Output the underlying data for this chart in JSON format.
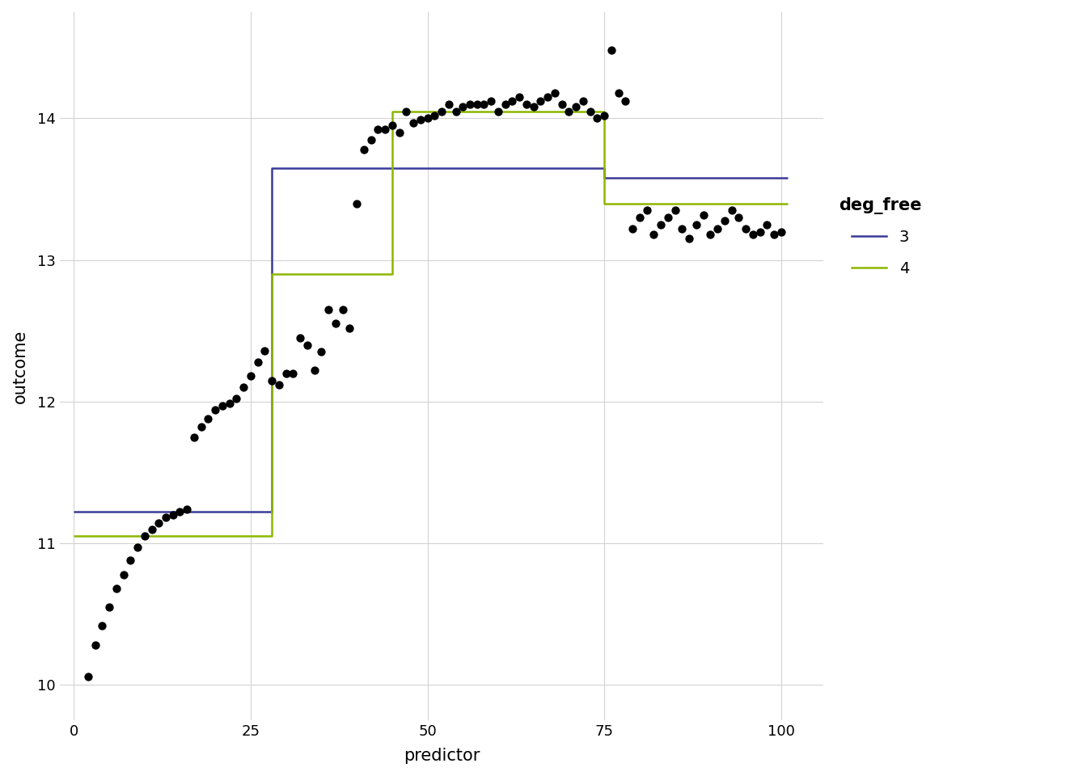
{
  "xlabel": "predictor",
  "ylabel": "outcome",
  "background_color": "#ffffff",
  "grid_color": "#d3d3d3",
  "scatter_color": "#000000",
  "xlim": [
    -2,
    106
  ],
  "ylim": [
    9.75,
    14.75
  ],
  "xticks": [
    0,
    25,
    50,
    75,
    100
  ],
  "yticks": [
    10,
    11,
    12,
    13,
    14
  ],
  "line_blue_color": "#3B3B98",
  "line_green_color": "#8DB600",
  "legend_title": "deg_free",
  "legend_labels": [
    "3",
    "4"
  ],
  "scatter_x": [
    2,
    3,
    4,
    5,
    6,
    7,
    8,
    9,
    10,
    11,
    12,
    13,
    14,
    15,
    16,
    17,
    18,
    19,
    20,
    21,
    22,
    23,
    24,
    25,
    26,
    27,
    28,
    29,
    30,
    31,
    32,
    33,
    34,
    35,
    36,
    37,
    38,
    39,
    40,
    41,
    42,
    43,
    44,
    45,
    46,
    47,
    48,
    49,
    50,
    51,
    52,
    53,
    54,
    55,
    56,
    57,
    58,
    59,
    60,
    61,
    62,
    63,
    64,
    65,
    66,
    67,
    68,
    69,
    70,
    71,
    72,
    73,
    74,
    75,
    76,
    77,
    78,
    79,
    80,
    81,
    82,
    83,
    84,
    85,
    86,
    87,
    88,
    89,
    90,
    91,
    92,
    93,
    94,
    95,
    96,
    97,
    98,
    99,
    100
  ],
  "scatter_y": [
    10.06,
    10.28,
    10.42,
    10.55,
    10.68,
    10.78,
    10.88,
    10.97,
    11.05,
    11.1,
    11.14,
    11.18,
    11.2,
    11.22,
    11.24,
    11.75,
    11.82,
    11.88,
    11.94,
    11.97,
    11.99,
    12.02,
    12.1,
    12.18,
    12.28,
    12.36,
    12.15,
    12.12,
    12.2,
    12.2,
    12.45,
    12.4,
    12.22,
    12.35,
    12.65,
    12.55,
    12.65,
    12.52,
    13.4,
    13.78,
    13.85,
    13.92,
    13.92,
    13.95,
    13.9,
    14.05,
    13.97,
    13.99,
    14.0,
    14.02,
    14.05,
    14.1,
    14.05,
    14.08,
    14.1,
    14.1,
    14.1,
    14.12,
    14.05,
    14.1,
    14.12,
    14.15,
    14.1,
    14.08,
    14.12,
    14.15,
    14.18,
    14.1,
    14.05,
    14.08,
    14.12,
    14.05,
    14.0,
    14.02,
    14.48,
    14.18,
    14.12,
    13.22,
    13.3,
    13.35,
    13.18,
    13.25,
    13.3,
    13.35,
    13.22,
    13.15,
    13.25,
    13.32,
    13.18,
    13.22,
    13.28,
    13.35,
    13.3,
    13.22,
    13.18,
    13.2,
    13.25,
    13.18,
    13.2
  ],
  "blue_x": [
    0,
    28,
    28,
    75,
    75,
    101
  ],
  "blue_y": [
    11.22,
    11.22,
    13.65,
    13.65,
    13.58,
    13.58
  ],
  "green_x": [
    0,
    28,
    28,
    45,
    45,
    75,
    75,
    101
  ],
  "green_y": [
    11.05,
    11.05,
    12.9,
    12.9,
    14.05,
    14.05,
    13.4,
    13.4
  ]
}
